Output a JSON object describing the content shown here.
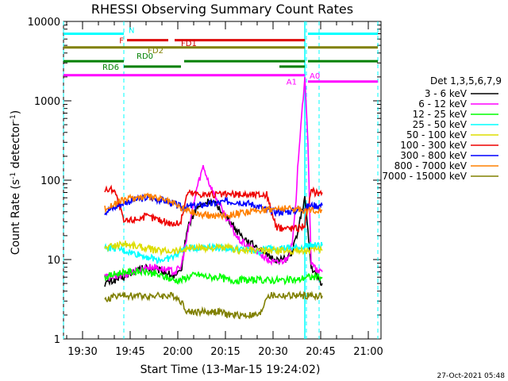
{
  "chart_data": {
    "type": "line",
    "title": "RHESSI Observing Summary Count Rates",
    "xlabel": "Start Time (13-Mar-15 19:24:02)",
    "ylabel_main": "Count Rate (s",
    "ylabel_sup1": "-1",
    "ylabel_mid": " detector",
    "ylabel_sup2": "-1",
    "ylabel_end": ")",
    "y_scale": "log",
    "ylim": [
      1,
      10000
    ],
    "xlim_min": [
      19,
      24
    ],
    "xlim_max": [
      21,
      4
    ],
    "y_ticks": [
      "1",
      "10",
      "100",
      "1000",
      "10000"
    ],
    "x_ticks": [
      "19:30",
      "19:45",
      "20:00",
      "20:15",
      "20:30",
      "20:45",
      "21:00"
    ],
    "x_tick_min": [
      1170,
      1185,
      1200,
      1215,
      1230,
      1245,
      1260
    ],
    "legend_title": "Det 1,3,5,6,7,9",
    "legend_position": "right",
    "footer": "27-Oct-2021 05:48",
    "dashed_lines_min": [
      1164,
      1183,
      1240.5,
      1244.5,
      1263
    ],
    "dashed_colors": [
      "#00ffff",
      "#00ffff",
      "#00ffff",
      "#00ffff",
      "#00ffff"
    ],
    "solid_lines_min": [
      1240
    ],
    "segments": [
      {
        "label": "N",
        "color": "#00ffff",
        "y": 7000,
        "ranges": [
          [
            1164,
            1183
          ],
          [
            1241,
            1263
          ]
        ]
      },
      {
        "label": "F",
        "color": "#dd0000",
        "y": 5800,
        "ranges": [
          [
            1184,
            1197
          ],
          [
            1199,
            1240
          ]
        ]
      },
      {
        "label": "FD1",
        "color": "#cc0000",
        "y": 5800,
        "ranges": [],
        "note": "label only"
      },
      {
        "label": "FD2",
        "color": "#808000",
        "y": 4700,
        "ranges": [
          [
            1164,
            1240
          ],
          [
            1241,
            1263
          ]
        ]
      },
      {
        "label": "RD0",
        "color": "#008000",
        "y": 3150,
        "ranges": [
          [
            1164,
            1183
          ],
          [
            1202,
            1240
          ],
          [
            1241,
            1263
          ]
        ]
      },
      {
        "label": "RD6",
        "color": "#008000",
        "y": 2700,
        "ranges": [
          [
            1183,
            1201
          ],
          [
            1232,
            1240
          ]
        ]
      },
      {
        "label": "A1",
        "color": "#ff00ff",
        "y": 2100,
        "ranges": [
          [
            1164,
            1240
          ]
        ]
      },
      {
        "label": "A0",
        "color": "#ff00ff",
        "y": 1750,
        "ranges": [
          [
            1241,
            1263
          ]
        ]
      }
    ],
    "series": [
      {
        "name": "3 - 6 keV",
        "color": "#000000",
        "x": [
          1177,
          1180,
          1183,
          1186,
          1190,
          1193,
          1196,
          1199,
          1201,
          1203,
          1206,
          1210,
          1213,
          1216,
          1219,
          1223,
          1226,
          1228,
          1231,
          1234,
          1236,
          1238,
          1240,
          1242,
          1244,
          1245.5
        ],
        "y": [
          5,
          5.5,
          6,
          7,
          8,
          7.5,
          7,
          6,
          7,
          25,
          45,
          55,
          45,
          32,
          22,
          16,
          14,
          11,
          10,
          10,
          12,
          25,
          60,
          8,
          6,
          5
        ]
      },
      {
        "name": "6 - 12 keV",
        "color": "#ff00ff",
        "x": [
          1177,
          1180,
          1183,
          1186,
          1190,
          1193,
          1196,
          1199,
          1201,
          1203,
          1206,
          1208,
          1210,
          1213,
          1216,
          1219,
          1223,
          1226,
          1228,
          1231,
          1234,
          1236,
          1237,
          1238,
          1239,
          1240,
          1241,
          1242,
          1244,
          1245.5
        ],
        "y": [
          6,
          6,
          6.5,
          7,
          8,
          8,
          7.5,
          7,
          8,
          20,
          80,
          150,
          90,
          50,
          30,
          18,
          14,
          12,
          10,
          9,
          10,
          15,
          40,
          200,
          700,
          1800,
          300,
          9,
          7,
          7
        ]
      },
      {
        "name": "12 - 25 keV",
        "color": "#00ff00",
        "x": [
          1177,
          1180,
          1183,
          1186,
          1190,
          1193,
          1196,
          1199,
          1201,
          1203,
          1206,
          1210,
          1213,
          1216,
          1219,
          1223,
          1226,
          1228,
          1231,
          1234,
          1238,
          1240,
          1242,
          1244,
          1245.5
        ],
        "y": [
          6,
          6.5,
          7,
          7,
          7,
          6.5,
          6,
          5.5,
          5.5,
          6,
          6.5,
          6,
          6,
          5.5,
          5.5,
          5.5,
          5.5,
          5.5,
          5.5,
          5.5,
          5.5,
          6,
          6,
          6,
          6
        ]
      },
      {
        "name": "25 - 50 keV",
        "color": "#00ffff",
        "x": [
          1177,
          1180,
          1183,
          1186,
          1190,
          1193,
          1196,
          1199,
          1201,
          1203,
          1206,
          1210,
          1213,
          1216,
          1219,
          1223,
          1226,
          1228,
          1231,
          1234,
          1238,
          1240,
          1242,
          1244,
          1245.5
        ],
        "y": [
          14,
          14,
          13,
          12,
          11,
          10,
          10,
          11,
          13,
          14,
          14,
          15,
          14,
          14,
          13.5,
          13,
          12.5,
          14,
          14,
          14,
          14,
          15,
          15,
          15,
          15
        ]
      },
      {
        "name": "50 - 100 keV",
        "color": "#dddd00",
        "x": [
          1177,
          1180,
          1183,
          1186,
          1190,
          1193,
          1196,
          1199,
          1201,
          1203,
          1206,
          1210,
          1213,
          1216,
          1219,
          1223,
          1226,
          1228,
          1231,
          1234,
          1238,
          1240,
          1242,
          1244,
          1245.5
        ],
        "y": [
          14,
          15,
          16,
          15,
          14,
          13,
          13,
          13,
          13,
          14,
          14,
          14,
          14,
          14,
          13,
          13,
          13,
          13,
          13,
          13,
          13,
          13,
          13,
          13,
          13
        ]
      },
      {
        "name": "100 - 300 keV",
        "color": "#ee0000",
        "x": [
          1177,
          1180,
          1183,
          1186,
          1190,
          1193,
          1196,
          1199,
          1201,
          1203,
          1206,
          1210,
          1213,
          1216,
          1219,
          1223,
          1226,
          1228,
          1231,
          1234,
          1238,
          1240,
          1242,
          1244,
          1245.5
        ],
        "y": [
          75,
          78,
          30,
          32,
          35,
          33,
          30,
          28,
          30,
          70,
          68,
          66,
          66,
          66,
          66,
          66,
          66,
          66,
          25,
          25,
          25,
          28,
          72,
          70,
          70
        ]
      },
      {
        "name": "300 - 800 keV",
        "color": "#0000ff",
        "x": [
          1177,
          1180,
          1183,
          1186,
          1190,
          1193,
          1196,
          1199,
          1201,
          1203,
          1206,
          1210,
          1213,
          1216,
          1219,
          1223,
          1226,
          1228,
          1231,
          1234,
          1238,
          1240,
          1242,
          1244,
          1245.5
        ],
        "y": [
          40,
          45,
          52,
          56,
          60,
          58,
          55,
          50,
          46,
          46,
          48,
          50,
          52,
          54,
          54,
          50,
          46,
          42,
          40,
          40,
          42,
          45,
          48,
          48,
          48
        ]
      },
      {
        "name": "800 - 7000 keV",
        "color": "#ff8000",
        "x": [
          1177,
          1180,
          1183,
          1186,
          1190,
          1193,
          1196,
          1199,
          1201,
          1203,
          1206,
          1210,
          1213,
          1216,
          1219,
          1223,
          1226,
          1228,
          1231,
          1234,
          1238,
          1240,
          1242,
          1244,
          1245.5
        ],
        "y": [
          44,
          50,
          56,
          60,
          62,
          60,
          56,
          50,
          45,
          42,
          38,
          36,
          36,
          37,
          38,
          40,
          42,
          43,
          44,
          44,
          43,
          42,
          42,
          42,
          42
        ]
      },
      {
        "name": "7000 - 15000 keV",
        "color": "#808000",
        "x": [
          1177,
          1180,
          1183,
          1186,
          1190,
          1193,
          1196,
          1199,
          1201,
          1203,
          1206,
          1210,
          1213,
          1216,
          1219,
          1223,
          1226,
          1228,
          1231,
          1234,
          1238,
          1240,
          1242,
          1244,
          1245.5
        ],
        "y": [
          3,
          3.5,
          3.5,
          3.5,
          3.5,
          3.5,
          3.5,
          3.5,
          3,
          2.2,
          2.2,
          2.2,
          2.2,
          2,
          2,
          2,
          2,
          3.5,
          3.5,
          3.5,
          3.5,
          3.5,
          3.5,
          3.5,
          3.5
        ]
      }
    ]
  }
}
